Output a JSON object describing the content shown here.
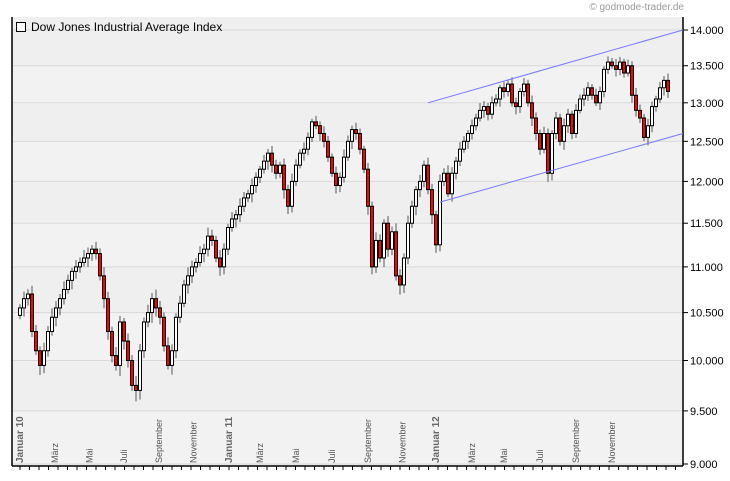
{
  "copyright": "© godmode-trader.de",
  "legend": "Dow Jones Industrial Average Index",
  "colors": {
    "up_body": "#ffffff",
    "down_body": "#ff0000",
    "outline": "#000000",
    "wick": "#555555",
    "channel": "#7777ff",
    "grid": "#d9d9d9",
    "background": "#efefef"
  },
  "chart_data": {
    "type": "candlestick",
    "title": "",
    "series": [
      {
        "name": "Dow Jones Industrial Average Index",
        "interval": "weekly",
        "close": [
          10550,
          10650,
          10700,
          10300,
          10100,
          9950,
          10100,
          10300,
          10450,
          10550,
          10650,
          10750,
          10850,
          10950,
          11000,
          11050,
          11100,
          11150,
          11200,
          11150,
          10900,
          10650,
          10300,
          10050,
          9950,
          10400,
          10200,
          10000,
          9750,
          9700,
          10100,
          10400,
          10500,
          10650,
          10550,
          10450,
          10150,
          9950,
          10100,
          10450,
          10600,
          10800,
          10900,
          11000,
          11050,
          11150,
          11200,
          11350,
          11300,
          11100,
          11000,
          11200,
          11450,
          11550,
          11600,
          11700,
          11800,
          11850,
          11950,
          12050,
          12150,
          12250,
          12350,
          12200,
          12100,
          12200,
          11900,
          11700,
          12000,
          12200,
          12350,
          12400,
          12550,
          12750,
          12700,
          12600,
          12500,
          12300,
          12100,
          11950,
          12050,
          12300,
          12500,
          12650,
          12600,
          12400,
          12150,
          11700,
          11000,
          11300,
          11100,
          11500,
          11200,
          11400,
          10900,
          10800,
          11100,
          11500,
          11700,
          11900,
          12000,
          12200,
          11900,
          11600,
          11250,
          12000,
          12100,
          11850,
          12100,
          12250,
          12400,
          12500,
          12600,
          12700,
          12800,
          12900,
          12950,
          12850,
          13000,
          13050,
          13200,
          13150,
          13250,
          13000,
          12950,
          13150,
          13250,
          13000,
          12800,
          12600,
          12400,
          12600,
          12100,
          12600,
          12800,
          12500,
          12700,
          12850,
          12600,
          12900,
          13050,
          13100,
          13200,
          13100,
          13000,
          13150,
          13450,
          13550,
          13500,
          13450,
          13550,
          13400,
          13500,
          13100,
          12900,
          12800,
          12550,
          12700,
          12950,
          13050,
          13200,
          13300,
          13150
        ]
      }
    ],
    "x_tick_labels": [
      "Januar 10",
      "März",
      "Mai",
      "Juli",
      "September",
      "November",
      "Januar 11",
      "März",
      "Mai",
      "Juli",
      "September",
      "November",
      "Januar 12",
      "März",
      "Mai",
      "Juli",
      "September",
      "November"
    ],
    "y_tick_labels": [
      "14.000",
      "13.500",
      "13.000",
      "12.500",
      "12.000",
      "11.500",
      "11.000",
      "10.500",
      "10.000",
      "9.500",
      "9.000"
    ],
    "y_ticks": [
      14000,
      13500,
      13000,
      12500,
      12000,
      11500,
      11000,
      10500,
      10000,
      9500,
      9000
    ],
    "ylim": [
      9000,
      14000
    ],
    "y_scale": "log",
    "grid": true,
    "legend_position": "top-left",
    "trend_channel": {
      "upper": {
        "from_week": 102,
        "from_value": 13000,
        "to_value": 14000
      },
      "lower": {
        "from_week": 105,
        "from_value": 11750,
        "to_value": 12600
      }
    }
  }
}
